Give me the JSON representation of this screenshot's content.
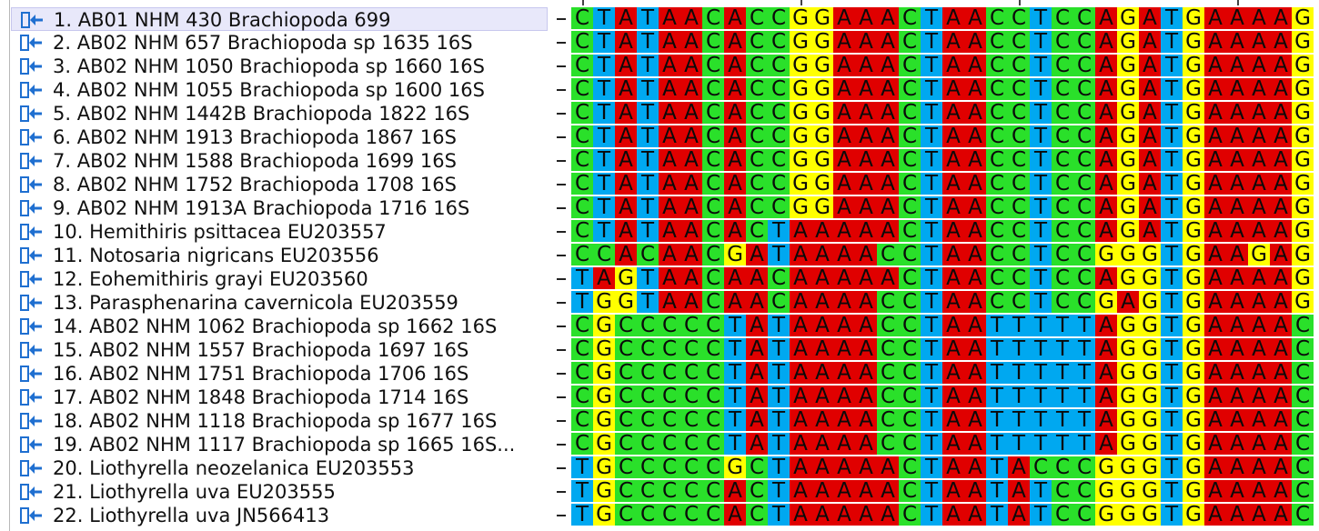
{
  "colors": {
    "A": "#e00000",
    "C": "#2ae02a",
    "G": "#ffff00",
    "T": "#00a8f0",
    "selection": "#e8e8fa",
    "icon": "#1f6fd0"
  },
  "sequences": [
    {
      "label": "1. AB01 NHM 430 Brachiopoda 699",
      "seq": "CTATAACACCGGAAACTAACCTCCAGATGAAAAG",
      "selected": true
    },
    {
      "label": "2. AB02 NHM 657 Brachiopoda sp 1635 16S",
      "seq": "CTATAACACCGGAAACTAACCTCCAGATGAAAAG"
    },
    {
      "label": "3. AB02 NHM 1050 Brachiopoda sp 1660 16S",
      "seq": "CTATAACACCGGAAACTAACCTCCAGATGAAAAG"
    },
    {
      "label": "4. AB02 NHM 1055 Brachiopoda sp 1600 16S",
      "seq": "CTATAACACCGGAAACTAACCTCCAGATGAAAAG"
    },
    {
      "label": "5. AB02 NHM 1442B Brachiopoda 1822 16S",
      "seq": "CTATAACACCGGAAACTAACCTCCAGATGAAAAG"
    },
    {
      "label": "6. AB02 NHM 1913 Brachiopoda 1867 16S",
      "seq": "CTATAACACCGGAAACTAACCTCCAGATGAAAAG"
    },
    {
      "label": "7. AB02 NHM 1588 Brachiopoda 1699 16S",
      "seq": "CTATAACACCGGAAACTAACCTCCAGATGAAAAG"
    },
    {
      "label": "8. AB02 NHM 1752 Brachiopoda 1708 16S",
      "seq": "CTATAACACCGGAAACTAACCTCCAGATGAAAAG"
    },
    {
      "label": "9. AB02 NHM 1913A Brachiopoda 1716 16S",
      "seq": "CTATAACACCGGAAACTAACCTCCAGATGAAAAG"
    },
    {
      "label": "10. Hemithiris psittacea EU203557",
      "seq": "CTATAACACTAAAAACTAACCTCCAGATGAAAAG"
    },
    {
      "label": "11. Notosaria nigricans EU203556",
      "seq": "CCACAACGATAAAACCTAACCTCCGGGTGAAGAG"
    },
    {
      "label": "12. Eohemithiris grayi EU203560",
      "seq": "TAGTAACAACAAAAACTAACCTCCAGGTGAAAAG"
    },
    {
      "label": "13. Parasphenarina cavernicola EU203559",
      "seq": "TGGTAACAACAAAACCTAACCTCCGAGTGAAAAG"
    },
    {
      "label": "14. AB02 NHM 1062 Brachiopoda sp 1662 16S",
      "seq": "CGCCCCCTATAAAACCTAATTTTTAGGTGAAAAC"
    },
    {
      "label": "15. AB02 NHM 1557 Brachiopoda 1697 16S",
      "seq": "CGCCCCCTATAAAACCTAATTTTTAGGTGAAAAC"
    },
    {
      "label": "16. AB02 NHM 1751 Brachiopoda 1706 16S",
      "seq": "CGCCCCCTATAAAACCTAATTTTTAGGTGAAAAC"
    },
    {
      "label": "17. AB02 NHM 1848 Brachiopoda 1714 16S",
      "seq": "CGCCCCCTATAAAACCTAATTTTTAGGTGAAAAC"
    },
    {
      "label": "18. AB02 NHM 1118 Brachiopoda sp 1677 16S",
      "seq": "CGCCCCCTATAAAACCTAATTTTTAGGTGAAAAC"
    },
    {
      "label": "19. AB02 NHM 1117 Brachiopoda sp 1665 16S...",
      "seq": "CGCCCCCTATAAAACCTAATTTTTAGGTGAAAAC"
    },
    {
      "label": "20. Liothyrella neozelanica EU203553",
      "seq": "TGCCCCCGCTAAAAACTAATACCCGGGTGAAAAC"
    },
    {
      "label": "21. Liothyrella uva EU203555",
      "seq": "TGCCCCCACTAAAAACTAATATCCGGGTGAAAAC"
    },
    {
      "label": "22. Liothyrella uva JN566413",
      "seq": "TGCCCCCACTAAAAACTAATATCCGGGTGAAAAC"
    }
  ]
}
